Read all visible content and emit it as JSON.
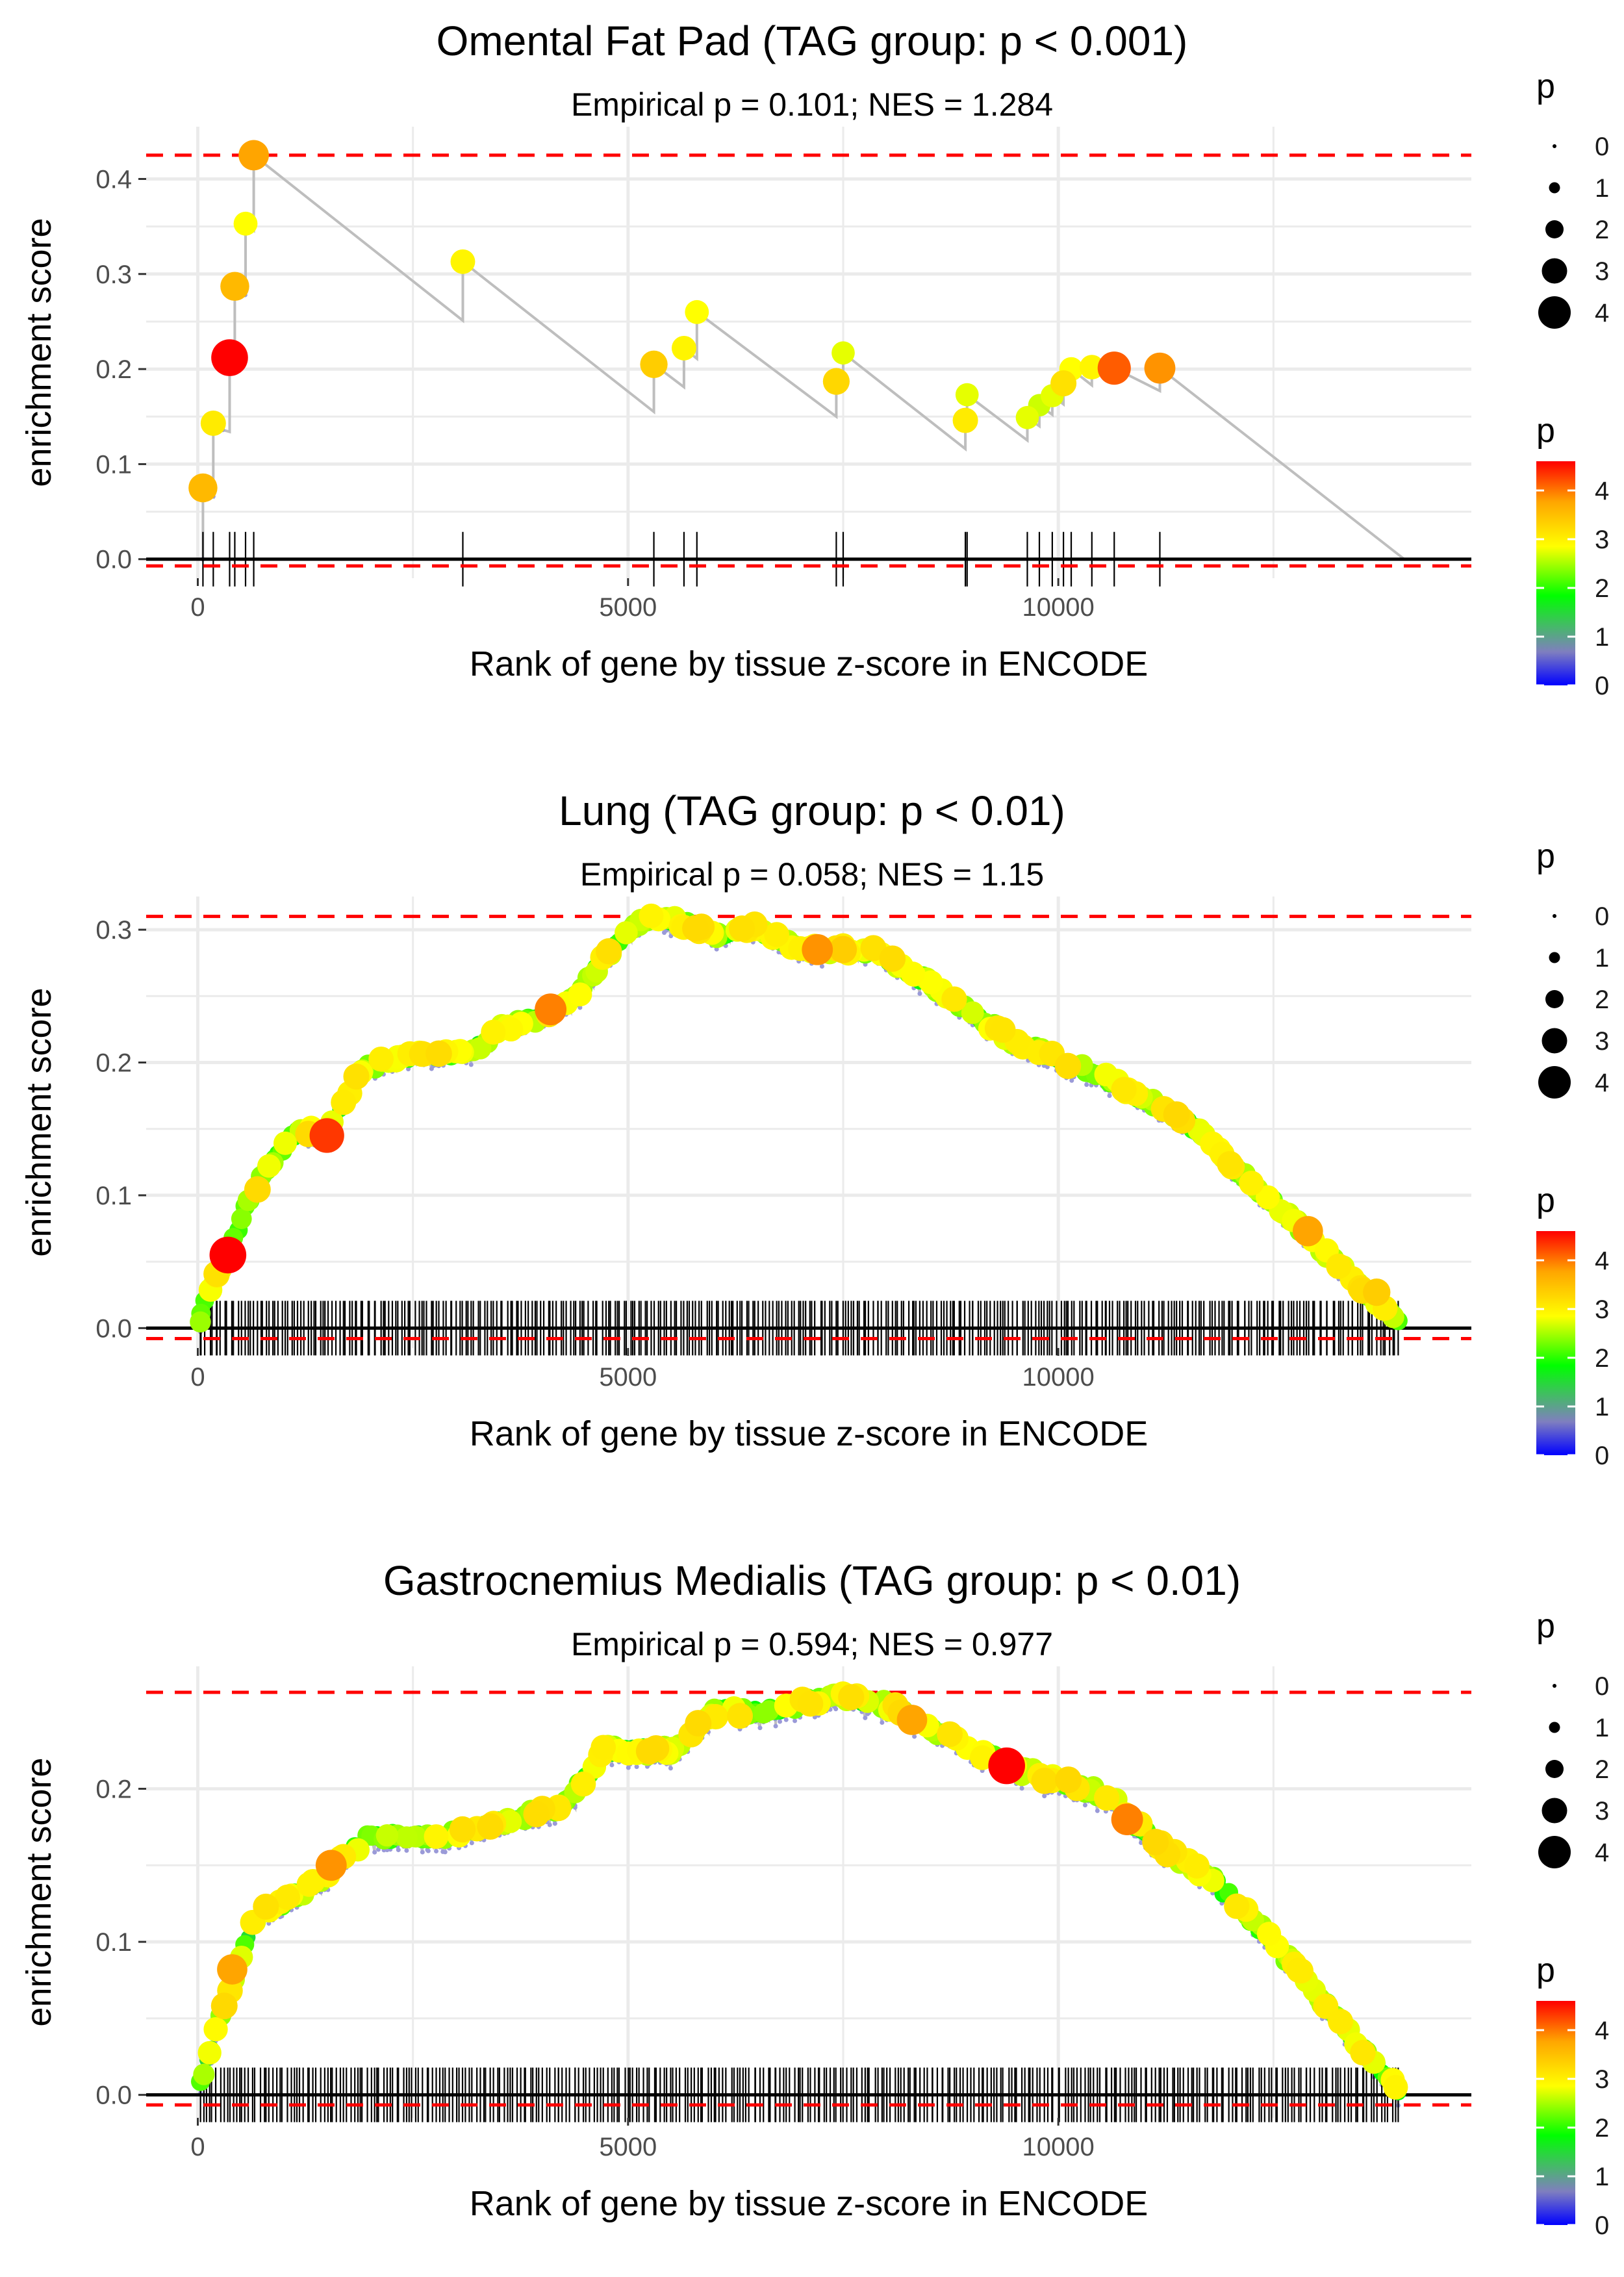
{
  "figure": {
    "shared": {
      "xlabel": "Rank of gene by tissue z-score in ENCODE",
      "ylabel": "enrichment score",
      "legend_size_title": "p",
      "legend_color_title": "p",
      "legend_size_labels": [
        "0",
        "1",
        "2",
        "3",
        "4"
      ],
      "legend_color_labels": [
        "4",
        "3",
        "2",
        "1",
        "0"
      ],
      "colors": {
        "curve": "#bebebe",
        "dashed": "#ff0000",
        "baseline": "#000000",
        "grid": "#ebebeb",
        "gradient": [
          "#0000ff",
          "#7f7fbf",
          "#00ff00",
          "#ffff00",
          "#ffa500",
          "#ff0000"
        ]
      }
    }
  },
  "chart_data": [
    {
      "type": "line",
      "title": "Omental Fat Pad (TAG group: p < 0.001)",
      "subtitle": "Empirical p = 0.101; NES = 1.284",
      "xlabel": "Rank of gene by tissue z-score in ENCODE",
      "ylabel": "enrichment score",
      "xlim": [
        -600,
        14800
      ],
      "ylim": [
        -0.02,
        0.455
      ],
      "x_ticks": [
        0,
        5000,
        10000
      ],
      "x_tick_labels": [
        "0",
        "5000",
        "10000"
      ],
      "y_ticks": [
        0,
        0.1,
        0.2,
        0.3,
        0.4
      ],
      "y_tick_labels": [
        "0.0",
        "0.1",
        "0.2",
        "0.3",
        "0.4"
      ],
      "max_es": 0.425,
      "min_es": -0.003,
      "legend_size": {
        "title": "p",
        "labels": [
          "0",
          "1",
          "2",
          "3",
          "4"
        ]
      },
      "legend_color": {
        "title": "p",
        "labels": [
          "4",
          "3",
          "2",
          "1",
          "0"
        ]
      },
      "curve": [
        {
          "x": 0,
          "y": 0.0
        },
        {
          "x": 60,
          "y": 0.0
        },
        {
          "x": 60,
          "y": 0.075
        },
        {
          "x": 180,
          "y": 0.066
        },
        {
          "x": 180,
          "y": 0.143
        },
        {
          "x": 290,
          "y": 0.136
        },
        {
          "x": 370,
          "y": 0.134
        },
        {
          "x": 370,
          "y": 0.212
        },
        {
          "x": 420,
          "y": 0.21
        },
        {
          "x": 430,
          "y": 0.209
        },
        {
          "x": 430,
          "y": 0.287
        },
        {
          "x": 550,
          "y": 0.278
        },
        {
          "x": 555,
          "y": 0.278
        },
        {
          "x": 555,
          "y": 0.353
        },
        {
          "x": 650,
          "y": 0.346
        },
        {
          "x": 650,
          "y": 0.425
        },
        {
          "x": 3080,
          "y": 0.251
        },
        {
          "x": 3080,
          "y": 0.313
        },
        {
          "x": 5300,
          "y": 0.155
        },
        {
          "x": 5300,
          "y": 0.205
        },
        {
          "x": 5650,
          "y": 0.181
        },
        {
          "x": 5650,
          "y": 0.222
        },
        {
          "x": 5800,
          "y": 0.211
        },
        {
          "x": 5800,
          "y": 0.26
        },
        {
          "x": 7420,
          "y": 0.15
        },
        {
          "x": 7420,
          "y": 0.187
        },
        {
          "x": 7500,
          "y": 0.181
        },
        {
          "x": 7500,
          "y": 0.217
        },
        {
          "x": 8920,
          "y": 0.116
        },
        {
          "x": 8920,
          "y": 0.146
        },
        {
          "x": 8940,
          "y": 0.144
        },
        {
          "x": 8940,
          "y": 0.173
        },
        {
          "x": 9640,
          "y": 0.125
        },
        {
          "x": 9640,
          "y": 0.149
        },
        {
          "x": 9780,
          "y": 0.14
        },
        {
          "x": 9780,
          "y": 0.162
        },
        {
          "x": 9930,
          "y": 0.152
        },
        {
          "x": 9930,
          "y": 0.172
        },
        {
          "x": 10060,
          "y": 0.163
        },
        {
          "x": 10060,
          "y": 0.185
        },
        {
          "x": 10150,
          "y": 0.179
        },
        {
          "x": 10150,
          "y": 0.2
        },
        {
          "x": 10390,
          "y": 0.183
        },
        {
          "x": 10390,
          "y": 0.202
        },
        {
          "x": 10650,
          "y": 0.186
        },
        {
          "x": 10650,
          "y": 0.201
        },
        {
          "x": 11180,
          "y": 0.177
        },
        {
          "x": 11180,
          "y": 0.201
        },
        {
          "x": 14020,
          "y": 0.0
        }
      ],
      "hits": [
        {
          "x": 60,
          "y": 0.075,
          "p": 3.5
        },
        {
          "x": 180,
          "y": 0.143,
          "p": 3.0
        },
        {
          "x": 370,
          "y": 0.212,
          "p": 4.6
        },
        {
          "x": 430,
          "y": 0.287,
          "p": 3.5
        },
        {
          "x": 555,
          "y": 0.353,
          "p": 2.8
        },
        {
          "x": 650,
          "y": 0.425,
          "p": 3.7
        },
        {
          "x": 3080,
          "y": 0.313,
          "p": 2.9
        },
        {
          "x": 5300,
          "y": 0.205,
          "p": 3.3
        },
        {
          "x": 5650,
          "y": 0.222,
          "p": 2.9
        },
        {
          "x": 5800,
          "y": 0.26,
          "p": 2.8
        },
        {
          "x": 7420,
          "y": 0.187,
          "p": 3.2
        },
        {
          "x": 7500,
          "y": 0.217,
          "p": 2.7
        },
        {
          "x": 8920,
          "y": 0.146,
          "p": 3.0
        },
        {
          "x": 8940,
          "y": 0.173,
          "p": 2.7
        },
        {
          "x": 9640,
          "y": 0.149,
          "p": 2.7
        },
        {
          "x": 9780,
          "y": 0.162,
          "p": 2.6
        },
        {
          "x": 9930,
          "y": 0.172,
          "p": 2.7
        },
        {
          "x": 10060,
          "y": 0.185,
          "p": 3.1
        },
        {
          "x": 10150,
          "y": 0.2,
          "p": 2.8
        },
        {
          "x": 10390,
          "y": 0.202,
          "p": 2.9
        },
        {
          "x": 10650,
          "y": 0.201,
          "p": 4.1
        },
        {
          "x": 11180,
          "y": 0.201,
          "p": 3.8
        }
      ]
    },
    {
      "type": "line",
      "title": "Lung (TAG group: p < 0.01)",
      "subtitle": "Empirical p = 0.058; NES = 1.15",
      "xlabel": "Rank of gene by tissue z-score in ENCODE",
      "ylabel": "enrichment score",
      "xlim": [
        -600,
        14800
      ],
      "ylim": [
        -0.015,
        0.325
      ],
      "x_ticks": [
        0,
        5000,
        10000
      ],
      "x_tick_labels": [
        "0",
        "5000",
        "10000"
      ],
      "y_ticks": [
        0,
        0.1,
        0.2,
        0.3
      ],
      "y_tick_labels": [
        "0.0",
        "0.1",
        "0.2",
        "0.3"
      ],
      "max_es": 0.31,
      "min_es": -0.005,
      "legend_size": {
        "title": "p",
        "labels": [
          "0",
          "1",
          "2",
          "3",
          "4"
        ]
      },
      "legend_color": {
        "title": "p",
        "labels": [
          "4",
          "3",
          "2",
          "1",
          "0"
        ]
      },
      "hit_count": 380,
      "hit_x_range": [
        20,
        13950
      ],
      "shape_knots": [
        {
          "x": 0,
          "y": 0.0
        },
        {
          "x": 100,
          "y": 0.025
        },
        {
          "x": 350,
          "y": 0.055
        },
        {
          "x": 550,
          "y": 0.09
        },
        {
          "x": 850,
          "y": 0.125
        },
        {
          "x": 1200,
          "y": 0.15
        },
        {
          "x": 1500,
          "y": 0.145
        },
        {
          "x": 1900,
          "y": 0.195
        },
        {
          "x": 2400,
          "y": 0.205
        },
        {
          "x": 3200,
          "y": 0.208
        },
        {
          "x": 3500,
          "y": 0.225
        },
        {
          "x": 4000,
          "y": 0.235
        },
        {
          "x": 4400,
          "y": 0.25
        },
        {
          "x": 4800,
          "y": 0.285
        },
        {
          "x": 5100,
          "y": 0.305
        },
        {
          "x": 5400,
          "y": 0.31
        },
        {
          "x": 6000,
          "y": 0.296
        },
        {
          "x": 6500,
          "y": 0.302
        },
        {
          "x": 7000,
          "y": 0.285
        },
        {
          "x": 7800,
          "y": 0.285
        },
        {
          "x": 8500,
          "y": 0.26
        },
        {
          "x": 9500,
          "y": 0.215
        },
        {
          "x": 10500,
          "y": 0.19
        },
        {
          "x": 11500,
          "y": 0.155
        },
        {
          "x": 12500,
          "y": 0.095
        },
        {
          "x": 13300,
          "y": 0.045
        },
        {
          "x": 14020,
          "y": 0.0
        }
      ],
      "highlight_hits": [
        {
          "x": 350,
          "y": 0.055,
          "p": 4.6
        },
        {
          "x": 1500,
          "y": 0.145,
          "p": 4.3
        },
        {
          "x": 4100,
          "y": 0.24,
          "p": 3.9
        },
        {
          "x": 7200,
          "y": 0.285,
          "p": 3.8
        },
        {
          "x": 7500,
          "y": 0.285,
          "p": 3.3
        },
        {
          "x": 12900,
          "y": 0.073,
          "p": 3.7
        },
        {
          "x": 13700,
          "y": 0.027,
          "p": 3.3
        }
      ]
    },
    {
      "type": "line",
      "title": "Gastrocnemius Medialis (TAG group: p < 0.01)",
      "subtitle": "Empirical p = 0.594; NES = 0.977",
      "xlabel": "Rank of gene by tissue z-score in ENCODE",
      "ylabel": "enrichment score",
      "xlim": [
        -600,
        14800
      ],
      "ylim": [
        -0.015,
        0.28
      ],
      "x_ticks": [
        0,
        5000,
        10000
      ],
      "x_tick_labels": [
        "0",
        "5000",
        "10000"
      ],
      "y_ticks": [
        0,
        0.1,
        0.2
      ],
      "y_tick_labels": [
        "0.0",
        "0.1",
        "0.2"
      ],
      "max_es": 0.263,
      "min_es": -0.004,
      "legend_size": {
        "title": "p",
        "labels": [
          "0",
          "1",
          "2",
          "3",
          "4"
        ]
      },
      "legend_color": {
        "title": "p",
        "labels": [
          "4",
          "3",
          "2",
          "1",
          "0"
        ]
      },
      "hit_count": 360,
      "hit_x_range": [
        20,
        13950
      ],
      "shape_knots": [
        {
          "x": 0,
          "y": 0.0
        },
        {
          "x": 150,
          "y": 0.03
        },
        {
          "x": 400,
          "y": 0.075
        },
        {
          "x": 700,
          "y": 0.12
        },
        {
          "x": 1000,
          "y": 0.125
        },
        {
          "x": 1500,
          "y": 0.145
        },
        {
          "x": 2000,
          "y": 0.168
        },
        {
          "x": 3000,
          "y": 0.17
        },
        {
          "x": 3700,
          "y": 0.18
        },
        {
          "x": 4300,
          "y": 0.19
        },
        {
          "x": 4700,
          "y": 0.225
        },
        {
          "x": 5500,
          "y": 0.225
        },
        {
          "x": 6000,
          "y": 0.25
        },
        {
          "x": 6500,
          "y": 0.25
        },
        {
          "x": 7400,
          "y": 0.26
        },
        {
          "x": 8000,
          "y": 0.255
        },
        {
          "x": 8700,
          "y": 0.235
        },
        {
          "x": 9400,
          "y": 0.215
        },
        {
          "x": 10000,
          "y": 0.205
        },
        {
          "x": 10600,
          "y": 0.195
        },
        {
          "x": 11100,
          "y": 0.165
        },
        {
          "x": 11800,
          "y": 0.14
        },
        {
          "x": 12500,
          "y": 0.1
        },
        {
          "x": 13300,
          "y": 0.045
        },
        {
          "x": 14020,
          "y": 0.0
        }
      ],
      "highlight_hits": [
        {
          "x": 400,
          "y": 0.082,
          "p": 3.7
        },
        {
          "x": 1550,
          "y": 0.15,
          "p": 3.8
        },
        {
          "x": 8300,
          "y": 0.245,
          "p": 3.7
        },
        {
          "x": 9400,
          "y": 0.215,
          "p": 4.6
        },
        {
          "x": 10800,
          "y": 0.18,
          "p": 3.9
        },
        {
          "x": 10950,
          "y": 0.177,
          "p": 3.0
        }
      ]
    }
  ]
}
